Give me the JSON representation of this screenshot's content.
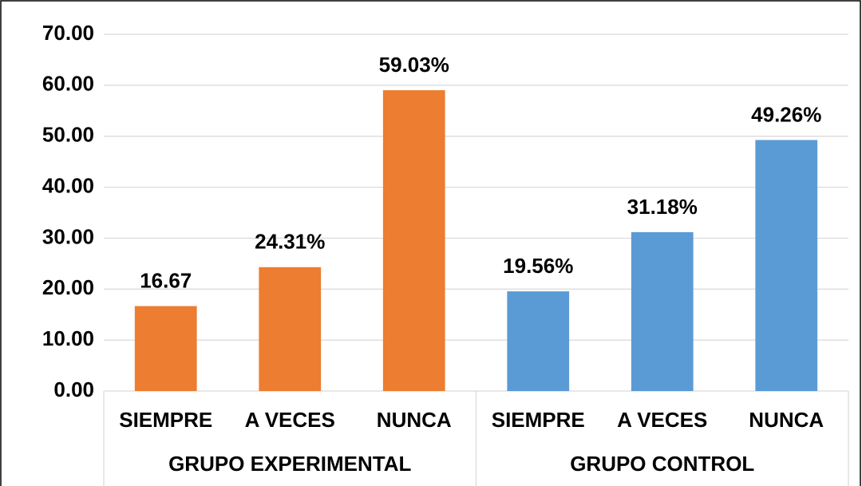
{
  "chart_data": {
    "type": "bar",
    "categories": [
      "SIEMPRE",
      "A VECES",
      "NUNCA",
      "SIEMPRE",
      "A VECES",
      "NUNCA"
    ],
    "groups": [
      "GRUPO EXPERIMENTAL",
      "GRUPO CONTROL"
    ],
    "values": [
      16.67,
      24.31,
      59.03,
      19.56,
      31.18,
      49.26
    ],
    "value_labels": [
      "16.67",
      "24.31%",
      "59.03%",
      "19.56%",
      "31.18%",
      "49.26%"
    ],
    "colors": [
      "#ed7d31",
      "#ed7d31",
      "#ed7d31",
      "#5b9bd5",
      "#5b9bd5",
      "#5b9bd5"
    ],
    "ylim": [
      0,
      70
    ],
    "yticks": [
      {
        "value": 0,
        "label": "0.00"
      },
      {
        "value": 10,
        "label": "10.00"
      },
      {
        "value": 20,
        "label": "20.00"
      },
      {
        "value": 30,
        "label": "30.00"
      },
      {
        "value": 40,
        "label": "40.00"
      },
      {
        "value": 50,
        "label": "50.00"
      },
      {
        "value": 60,
        "label": "60.00"
      },
      {
        "value": 70,
        "label": "70.00"
      }
    ],
    "grid": true
  }
}
